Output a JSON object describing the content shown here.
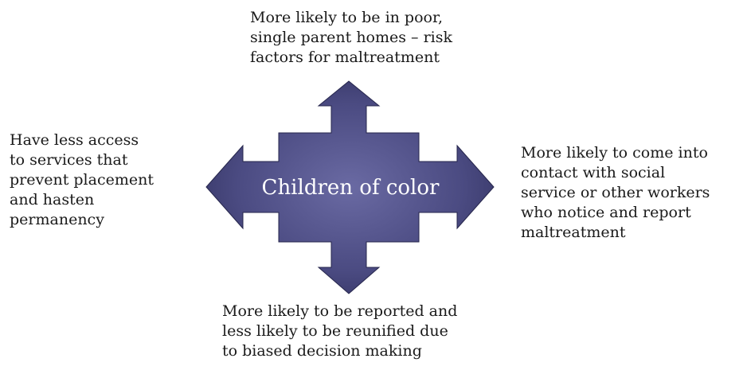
{
  "diagram": {
    "center_label": "Children of color",
    "top_text": "More likely to be in poor,\nsingle parent homes – risk\nfactors for maltreatment",
    "left_text": "Have less access\nto services that\nprevent placement\nand hasten\npermanency",
    "right_text": "More likely to come into\ncontact with social\nservice or other workers\nwho notice and report\nmaltreatment",
    "bottom_text": "More likely to be reported and\nless likely to be reunified due\nto biased decision making",
    "colors": {
      "arrow_light": "#5f5f96",
      "arrow_dark": "#2f2f5c",
      "text": "#1a1a1a",
      "center_text": "#ffffff"
    }
  }
}
